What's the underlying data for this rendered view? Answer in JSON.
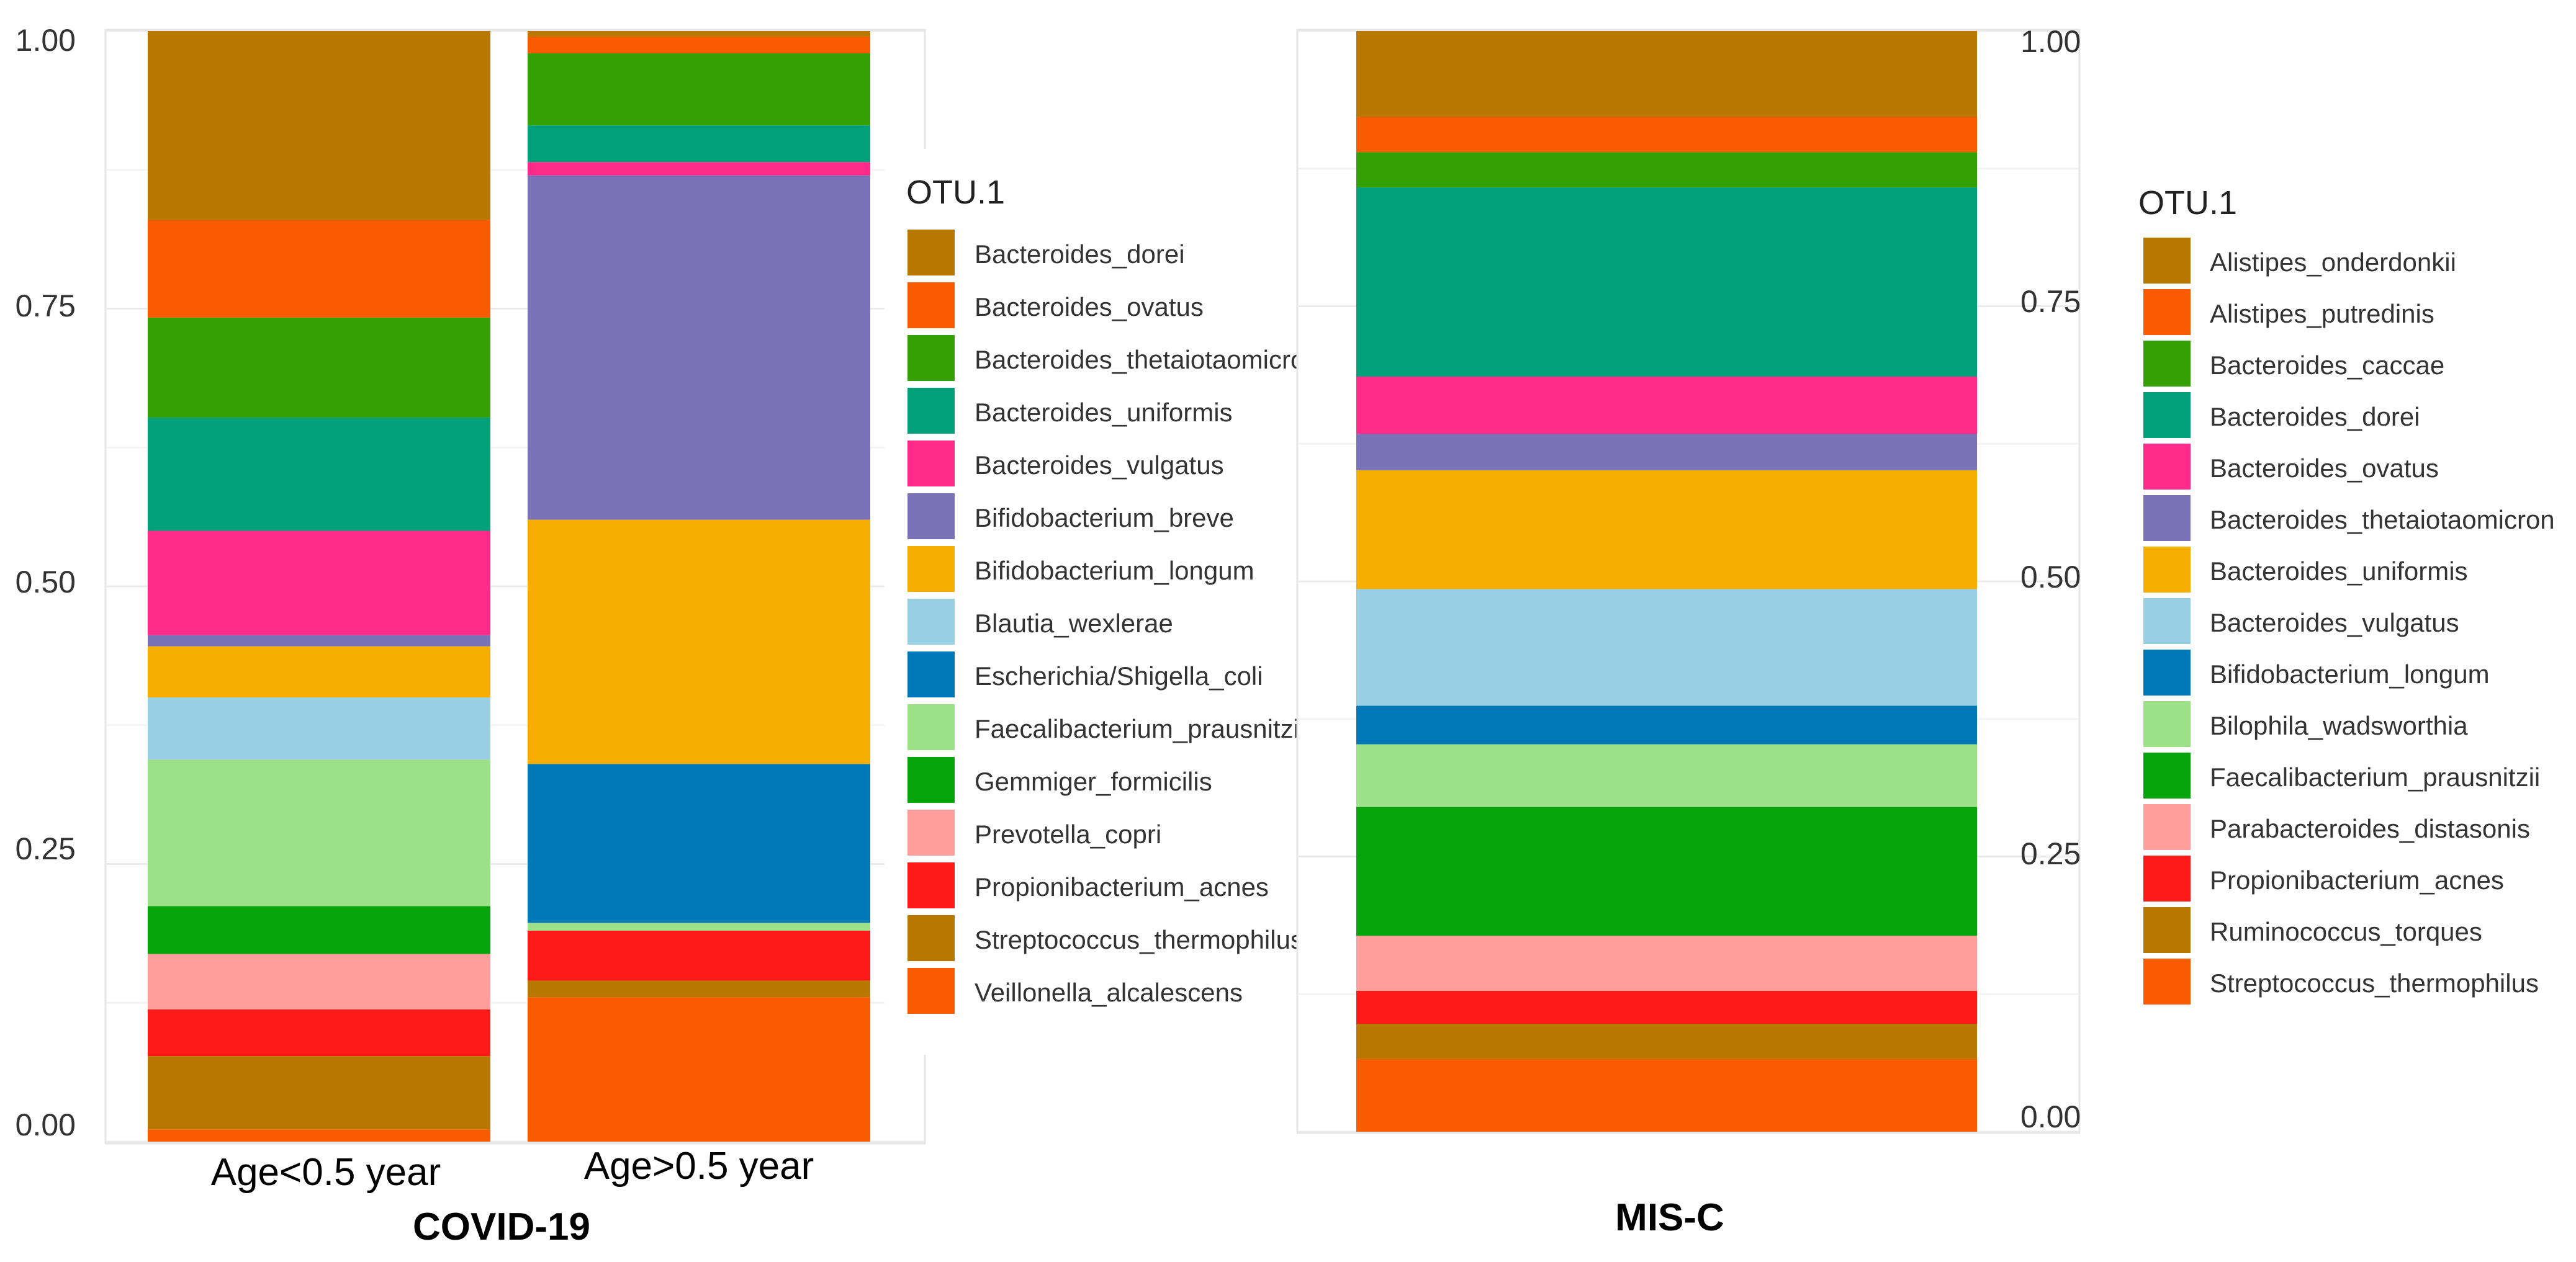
{
  "chart_data": [
    {
      "type": "bar",
      "stacked": true,
      "normalized": true,
      "group_label": "COVID-19",
      "legend_title": "OTU.1",
      "categories": [
        "Age<0.5 year",
        "Age>0.5 year"
      ],
      "ylim": [
        0,
        1
      ],
      "yticks": [
        "0.00",
        "0.25",
        "0.50",
        "0.75",
        "1.00"
      ],
      "series": [
        {
          "name": "Bacteroides_dorei",
          "color": "#B87800",
          "values": [
            0.17,
            0.005
          ]
        },
        {
          "name": "Bacteroides_ovatus",
          "color": "#FA5A00",
          "values": [
            0.088,
            0.015
          ]
        },
        {
          "name": "Bacteroides_thetaiotaomicron",
          "color": "#34A004",
          "values": [
            0.09,
            0.065
          ]
        },
        {
          "name": "Bacteroides_uniformis",
          "color": "#00A07A",
          "values": [
            0.102,
            0.033
          ]
        },
        {
          "name": "Bacteroides_vulgatus",
          "color": "#FF2A8A",
          "values": [
            0.094,
            0.012
          ]
        },
        {
          "name": "Bifidobacterium_breve",
          "color": "#7A72B6",
          "values": [
            0.01,
            0.31
          ]
        },
        {
          "name": "Bifidobacterium_longum",
          "color": "#F8AE00",
          "values": [
            0.046,
            0.22
          ]
        },
        {
          "name": "Blautia_wexlerae",
          "color": "#98CFE3",
          "values": [
            0.056,
            0
          ]
        },
        {
          "name": "Escherichia/Shigella_coli",
          "color": "#0178B8",
          "values": [
            0,
            0.143
          ]
        },
        {
          "name": "Faecalibacterium_prausnitzii",
          "color": "#9CE088",
          "values": [
            0.132,
            0.007
          ]
        },
        {
          "name": "Gemmiger_formicilis",
          "color": "#04A40A",
          "values": [
            0.043,
            0
          ]
        },
        {
          "name": "Prevotella_copri",
          "color": "#FF9E9A",
          "values": [
            0.05,
            0
          ]
        },
        {
          "name": "Propionibacterium_acnes",
          "color": "#FF1A1A",
          "values": [
            0.042,
            0.045
          ]
        },
        {
          "name": "Streptococcus_thermophilus",
          "color": "#B87800",
          "values": [
            0.066,
            0.015
          ]
        },
        {
          "name": "Veillonella_alcalescens",
          "color": "#FA5A00",
          "values": [
            0.011,
            0.13
          ]
        }
      ]
    },
    {
      "type": "bar",
      "stacked": true,
      "normalized": true,
      "group_label": "MIS-C",
      "legend_title": "OTU.1",
      "categories": [
        ""
      ],
      "ylim": [
        0,
        1
      ],
      "yticks": [
        "0.00",
        "0.25",
        "0.50",
        "0.75",
        "1.00"
      ],
      "series": [
        {
          "name": "Alistipes_onderdonkii",
          "color": "#B87800",
          "values": [
            0.078
          ]
        },
        {
          "name": "Alistipes_putredinis",
          "color": "#FA5A00",
          "values": [
            0.032
          ]
        },
        {
          "name": "Bacteroides_caccae",
          "color": "#34A004",
          "values": [
            0.032
          ]
        },
        {
          "name": "Bacteroides_dorei",
          "color": "#00A07A",
          "values": [
            0.172
          ]
        },
        {
          "name": "Bacteroides_ovatus",
          "color": "#FF2A8A",
          "values": [
            0.052
          ]
        },
        {
          "name": "Bacteroides_thetaiotaomicron",
          "color": "#7A72B6",
          "values": [
            0.033
          ]
        },
        {
          "name": "Bacteroides_uniformis",
          "color": "#F8AE00",
          "values": [
            0.108
          ]
        },
        {
          "name": "Bacteroides_vulgatus",
          "color": "#98CFE3",
          "values": [
            0.106
          ]
        },
        {
          "name": "Bifidobacterium_longum",
          "color": "#0178B8",
          "values": [
            0.035
          ]
        },
        {
          "name": "Bilophila_wadsworthia",
          "color": "#9CE088",
          "values": [
            0.057
          ]
        },
        {
          "name": "Faecalibacterium_prausnitzii",
          "color": "#04A40A",
          "values": [
            0.117
          ]
        },
        {
          "name": "Parabacteroides_distasonis",
          "color": "#FF9E9A",
          "values": [
            0.05
          ]
        },
        {
          "name": "Propionibacterium_acnes",
          "color": "#FF1A1A",
          "values": [
            0.03
          ]
        },
        {
          "name": "Ruminococcus_torques",
          "color": "#B87800",
          "values": [
            0.032
          ]
        },
        {
          "name": "Streptococcus_thermophilus",
          "color": "#FA5A00",
          "values": [
            0.066
          ]
        }
      ]
    }
  ]
}
